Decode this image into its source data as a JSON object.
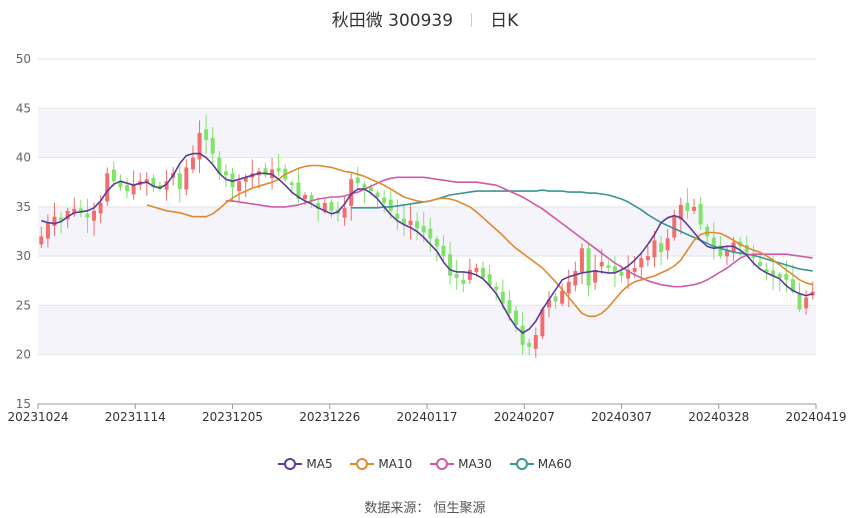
{
  "title": {
    "stock": "秋田微 300939",
    "period": "日K"
  },
  "source": "数据来源： 恒生聚源",
  "colors": {
    "up": "#f26d6d",
    "down": "#7fe36a",
    "ma5": "#5b3d98",
    "ma10": "#e08a2e",
    "ma30": "#cf5ba8",
    "ma60": "#3b9593",
    "band": "#f4f4fa"
  },
  "legend": [
    {
      "key": "ma5",
      "label": "MA5",
      "color": "#5b3d98"
    },
    {
      "key": "ma10",
      "label": "MA10",
      "color": "#e08a2e"
    },
    {
      "key": "ma30",
      "label": "MA30",
      "color": "#cf5ba8"
    },
    {
      "key": "ma60",
      "label": "MA60",
      "color": "#3b9593"
    }
  ],
  "chart_data": {
    "type": "candlestick",
    "title": "秋田微 300939",
    "ylim": [
      15,
      50
    ],
    "yticks": [
      15,
      20,
      25,
      30,
      35,
      40,
      45,
      50
    ],
    "xticks": [
      "20231024",
      "20231114",
      "20231205",
      "20231226",
      "20240117",
      "20240207",
      "20240307",
      "20240328",
      "20240419"
    ],
    "grid": true,
    "legend_position": "bottom",
    "series_order": "chronological, 20231024 to 20240419",
    "close": [
      32.0,
      33.4,
      34.0,
      33.6,
      34.6,
      34.8,
      34.4,
      33.9,
      34.6,
      35.4,
      38.4,
      37.6,
      37.0,
      36.6,
      37.2,
      37.6,
      37.8,
      37.0,
      36.8,
      37.6,
      38.4,
      36.8,
      39.0,
      40.0,
      42.5,
      41.8,
      40.4,
      38.4,
      38.2,
      37.0,
      37.6,
      38.0,
      38.4,
      38.6,
      38.2,
      38.8,
      38.6,
      37.8,
      37.2,
      35.8,
      36.2,
      35.6,
      34.8,
      35.4,
      34.6,
      34.3,
      34.9,
      37.8,
      37.4,
      36.8,
      36.6,
      36.0,
      35.4,
      34.6,
      33.8,
      33.2,
      33.6,
      32.8,
      32.4,
      31.8,
      31.0,
      30.0,
      28.0,
      27.8,
      27.2,
      28.6,
      28.8,
      27.8,
      27.0,
      26.6,
      25.2,
      24.2,
      23.0,
      21.0,
      20.8,
      22.0,
      24.6,
      25.6,
      25.4,
      26.5,
      27.4,
      28.5,
      30.8,
      27.0,
      28.6,
      29.4,
      28.8,
      28.4,
      28.0,
      28.6,
      28.8,
      29.8,
      30.0,
      31.6,
      30.4,
      31.8,
      34.0,
      35.2,
      34.6,
      35.0,
      33.2,
      32.0,
      31.0,
      30.0,
      30.6,
      31.4,
      31.0,
      30.4,
      29.8,
      29.0,
      28.4,
      28.0,
      27.8,
      27.6,
      26.4,
      24.6,
      25.8,
      26.4
    ],
    "ma5": [
      33.6,
      33.4,
      33.3,
      33.5,
      34.0,
      34.4,
      34.5,
      34.6,
      34.9,
      35.6,
      36.6,
      37.3,
      37.6,
      37.4,
      37.2,
      37.4,
      37.5,
      37.1,
      36.9,
      37.3,
      38.2,
      39.4,
      40.2,
      40.4,
      40.4,
      40.0,
      39.3,
      38.4,
      37.8,
      37.6,
      37.8,
      38.0,
      38.2,
      38.4,
      38.4,
      38.3,
      37.8,
      37.2,
      36.5,
      36.0,
      35.6,
      35.3,
      34.9,
      34.6,
      34.3,
      34.5,
      35.3,
      36.3,
      36.8,
      36.8,
      36.4,
      35.8,
      35.0,
      34.2,
      33.6,
      33.2,
      32.9,
      32.5,
      31.9,
      31.2,
      30.5,
      29.4,
      28.6,
      28.4,
      28.4,
      28.3,
      28.1,
      27.7,
      27.0,
      26.2,
      25.0,
      23.8,
      22.8,
      22.2,
      22.6,
      23.4,
      24.6,
      25.6,
      26.6,
      27.6,
      27.9,
      28.1,
      28.3,
      28.4,
      28.5,
      28.4,
      28.3,
      28.3,
      28.6,
      29.0,
      29.6,
      30.3,
      31.2,
      32.2,
      33.4,
      33.9,
      34.1,
      33.9,
      33.2,
      32.4,
      31.6,
      31.0,
      30.8,
      30.9,
      31.0,
      31.0,
      30.6,
      30.1,
      29.3,
      28.7,
      28.3,
      28.0,
      27.7,
      27.0,
      26.5,
      26.2,
      26.0,
      26.2
    ],
    "ma10": [
      35.2,
      35.0,
      34.8,
      34.6,
      34.5,
      34.4,
      34.2,
      34.0,
      34.0,
      34.0,
      34.3,
      34.8,
      35.4,
      35.9,
      36.3,
      36.6,
      36.9,
      37.1,
      37.3,
      37.5,
      37.8,
      38.3,
      38.6,
      38.9,
      39.1,
      39.2,
      39.2,
      39.1,
      39.0,
      38.8,
      38.6,
      38.5,
      38.3,
      38.1,
      37.8,
      37.5,
      37.2,
      36.8,
      36.4,
      36.0,
      35.8,
      35.6,
      35.5,
      35.6,
      35.8,
      35.9,
      35.8,
      35.6,
      35.3,
      35.0,
      34.5,
      33.9,
      33.3,
      32.7,
      32.1,
      31.4,
      30.8,
      30.3,
      29.8,
      29.3,
      28.8,
      28.1,
      27.4,
      26.6,
      25.8,
      25.0,
      24.2,
      23.9,
      23.9,
      24.2,
      24.8,
      25.6,
      26.4,
      27.0,
      27.4,
      27.6,
      27.8,
      28.0,
      28.3,
      28.6,
      29.0,
      29.6,
      30.6,
      31.6,
      32.2,
      32.4,
      32.4,
      32.3,
      32.0,
      31.6,
      31.2,
      30.9,
      30.6,
      30.4,
      30.0,
      29.6,
      29.1,
      28.6,
      28.1,
      27.6,
      27.3,
      27.1
    ],
    "ma30": [
      35.6,
      35.6,
      35.5,
      35.4,
      35.3,
      35.2,
      35.1,
      35.0,
      35.0,
      35.0,
      35.1,
      35.2,
      35.4,
      35.6,
      35.8,
      35.9,
      36.0,
      36.0,
      36.1,
      36.3,
      36.5,
      36.8,
      37.1,
      37.4,
      37.7,
      37.9,
      38.0,
      38.0,
      38.0,
      38.0,
      38.0,
      37.9,
      37.8,
      37.7,
      37.6,
      37.5,
      37.5,
      37.5,
      37.5,
      37.4,
      37.3,
      37.2,
      36.9,
      36.6,
      36.3,
      36.0,
      35.6,
      35.2,
      34.8,
      34.3,
      33.8,
      33.3,
      32.8,
      32.3,
      31.8,
      31.3,
      30.8,
      30.3,
      29.8,
      29.3,
      28.9,
      28.5,
      28.1,
      27.8,
      27.5,
      27.3,
      27.1,
      27.0,
      26.9,
      26.9,
      27.0,
      27.1,
      27.3,
      27.6,
      28.0,
      28.4,
      28.8,
      29.3,
      29.8,
      30.1,
      30.2,
      30.2,
      30.2,
      30.2,
      30.2,
      30.2,
      30.1,
      30.0,
      29.9,
      29.8
    ],
    "ma60": [
      34.9,
      34.9,
      34.9,
      34.9,
      34.9,
      35.0,
      35.0,
      35.1,
      35.2,
      35.3,
      35.4,
      35.5,
      35.6,
      35.8,
      36.0,
      36.2,
      36.3,
      36.4,
      36.5,
      36.6,
      36.6,
      36.6,
      36.6,
      36.6,
      36.6,
      36.6,
      36.6,
      36.6,
      36.6,
      36.7,
      36.6,
      36.6,
      36.6,
      36.5,
      36.5,
      36.5,
      36.4,
      36.4,
      36.3,
      36.2,
      36.0,
      35.8,
      35.5,
      35.1,
      34.7,
      34.2,
      33.8,
      33.4,
      33.1,
      32.8,
      32.5,
      32.2,
      31.9,
      31.6,
      31.3,
      31.0,
      30.8,
      30.6,
      30.4,
      30.3,
      30.2,
      30.1,
      29.9,
      29.7,
      29.5,
      29.3,
      29.1,
      28.9,
      28.7,
      28.6,
      28.5
    ]
  }
}
